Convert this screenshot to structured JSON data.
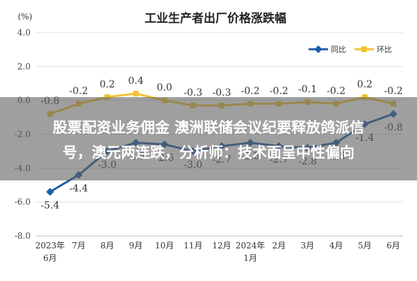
{
  "chart_data": {
    "type": "line",
    "title": "工业生产者出厂价格涨跌幅",
    "ylabel": "(%)",
    "xlabel": "",
    "ylim": [
      -8.0,
      4.0
    ],
    "yticks": [
      "4.0",
      "2.0",
      "0.0",
      "-2.0",
      "-4.0",
      "-6.0",
      "-8.0"
    ],
    "ytick_values": [
      4.0,
      2.0,
      0.0,
      -2.0,
      -4.0,
      -6.0,
      -8.0
    ],
    "categories": [
      [
        "2023年",
        "6月"
      ],
      [
        "7月"
      ],
      [
        "8月"
      ],
      [
        "9月"
      ],
      [
        "10月"
      ],
      [
        "11月"
      ],
      [
        "12月"
      ],
      [
        "2024年",
        "1月"
      ],
      [
        "2月"
      ],
      [
        "3月"
      ],
      [
        "4月"
      ],
      [
        "5月"
      ],
      [
        "6月"
      ]
    ],
    "grid": true,
    "legend_position": "top-right",
    "series": [
      {
        "name": "同比",
        "color": "#1f5ba8",
        "values": [
          -5.4,
          -4.4,
          -3.0,
          -2.5,
          -2.6,
          -3.0,
          -2.7,
          -2.5,
          -2.7,
          -2.8,
          -2.5,
          -1.4,
          -0.8
        ],
        "labels": [
          "-5.4",
          "-4.4",
          "-3.0",
          "-2.5",
          "-2.6",
          "-3.0",
          "-2.7",
          "-2.5",
          "-2.7",
          "-2.8",
          "-2.5",
          "-1.4",
          "-0.8"
        ]
      },
      {
        "name": "环比",
        "color": "#f2c232",
        "values": [
          -0.8,
          -0.2,
          0.2,
          0.4,
          0.0,
          -0.3,
          -0.3,
          -0.2,
          -0.2,
          -0.1,
          -0.2,
          0.2,
          -0.2
        ],
        "labels": [
          "-0.8",
          "-0.2",
          "0.2",
          "0.4",
          "0.0",
          "-0.3",
          "-0.3",
          "-0.2",
          "-0.2",
          "-0.1",
          "-0.2",
          "0.2",
          "-0.2"
        ]
      }
    ]
  },
  "overlay": {
    "headline_line1": "股票配资业务佣金 澳洲联储会议纪要释放鸽派信",
    "headline_line2": "号，澳元两连跌，分析师：技术面呈中性偏向"
  }
}
